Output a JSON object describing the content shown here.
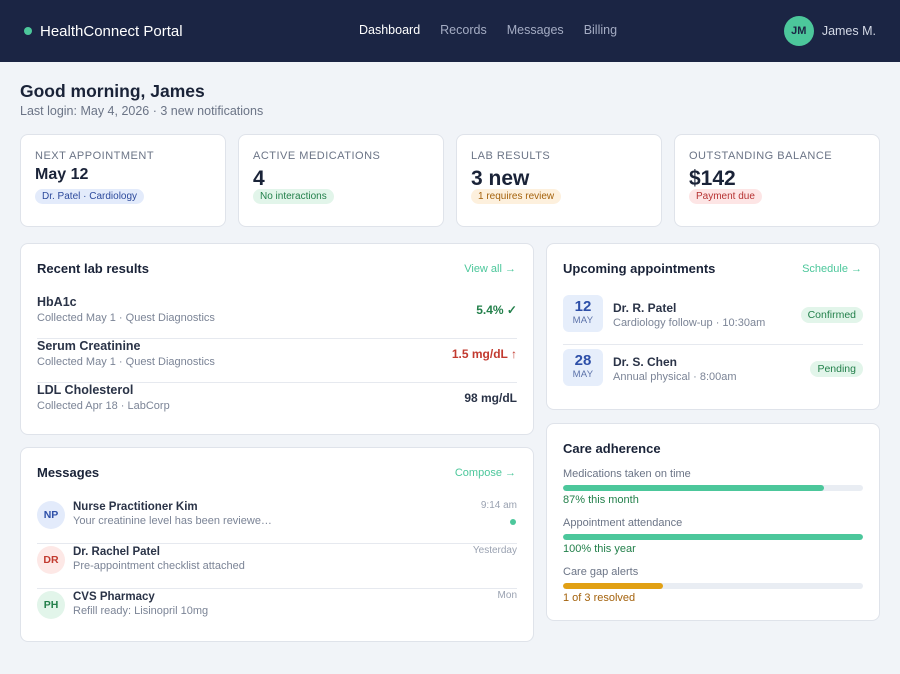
{
  "app": {
    "name": "HealthConnect Portal"
  },
  "nav": {
    "items": [
      "Dashboard",
      "Records",
      "Messages",
      "Billing"
    ],
    "active": "Dashboard"
  },
  "user": {
    "initials": "JM",
    "name": "James M."
  },
  "greeting": {
    "title": "Good morning, James",
    "subtitle": "Last login: May 4, 2026 · 3 new notifications"
  },
  "stats": [
    {
      "label": "Next appointment",
      "value": "May 12",
      "pill": "Dr. Patel · Cardiology",
      "pill_color": "#e3ebfb"
    },
    {
      "label": "Active medications",
      "value": "4",
      "pill": "No interactions",
      "pill_color": "#e2f5ea"
    },
    {
      "label": "Lab results",
      "value": "3 new",
      "pill": "1 requires review",
      "pill_color": "#fdf0dd"
    },
    {
      "label": "Outstanding balance",
      "value": "$142",
      "pill": "Payment due",
      "pill_color": "#fde5e5"
    }
  ],
  "labs": {
    "title": "Recent lab results",
    "link": "View all →",
    "rows": [
      {
        "name": "HbA1c",
        "meta": "Collected May 1 · Quest Diagnostics",
        "value": "5.4% ✓",
        "color": "#23804b"
      },
      {
        "name": "Serum Creatinine",
        "meta": "Collected May 1 · Quest Diagnostics",
        "value": "1.5 mg/dL ↑",
        "color": "#c23a2f"
      },
      {
        "name": "LDL Cholesterol",
        "meta": "Collected Apr 18 · LabCorp",
        "value": "98 mg/dL",
        "color": "#2a3347"
      }
    ]
  },
  "messages": {
    "title": "Messages",
    "link": "Compose →",
    "rows": [
      {
        "initials": "NP",
        "sender": "Nurse Practitioner Kim",
        "preview": "Your creatinine level has been reviewe…",
        "time": "9:14 am",
        "unread": true
      },
      {
        "initials": "DR",
        "sender": "Dr. Rachel Patel",
        "preview": "Pre-appointment checklist attached",
        "time": "Yesterday",
        "unread": false
      },
      {
        "initials": "PH",
        "sender": "CVS Pharmacy",
        "preview": "Refill ready: Lisinopril 10mg",
        "time": "Mon",
        "unread": false
      }
    ]
  },
  "appointments": {
    "title": "Upcoming appointments",
    "link": "Schedule →",
    "rows": [
      {
        "day": "12",
        "month": "MAY",
        "doctor": "Dr. R. Patel",
        "desc": "Cardiology follow-up · 10:30am",
        "status": "Confirmed"
      },
      {
        "day": "28",
        "month": "MAY",
        "doctor": "Dr. S. Chen",
        "desc": "Annual physical · 8:00am",
        "status": "Pending"
      }
    ]
  },
  "adherence": {
    "title": "Care adherence",
    "items": [
      {
        "label": "Medications taken on time",
        "value_text": "87% this month",
        "fraction": 0.87,
        "color": "#4cc79b",
        "text_color": "#23804b"
      },
      {
        "label": "Appointment attendance",
        "value_text": "100% this year",
        "fraction": 1.0,
        "color": "#4cc79b",
        "text_color": "#23804b"
      },
      {
        "label": "Care gap alerts",
        "value_text": "1 of 3 resolved",
        "fraction": 0.333,
        "color": "#e1a014",
        "text_color": "#a4620c"
      }
    ]
  }
}
